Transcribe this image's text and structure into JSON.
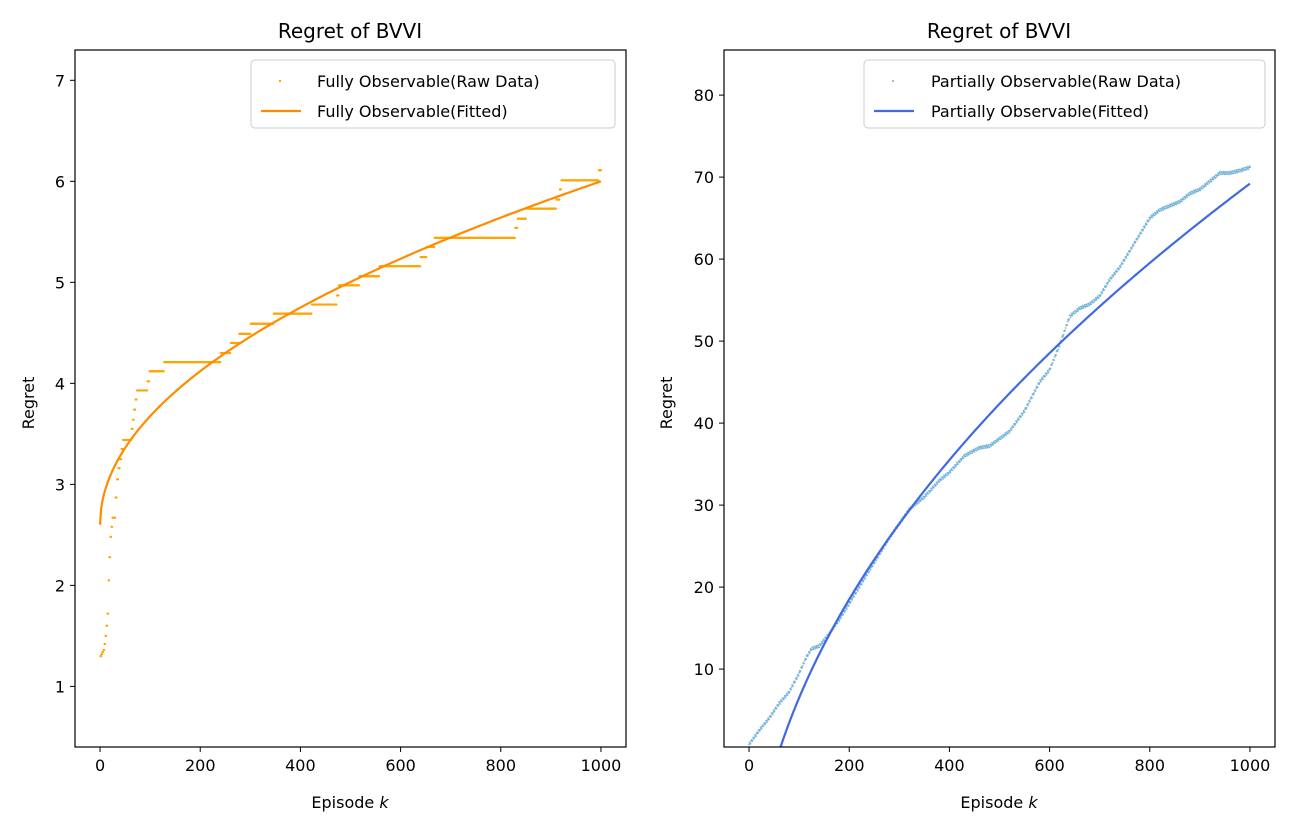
{
  "chart_data": [
    {
      "type": "scatter+line",
      "title": "Regret of BVVI",
      "xlabel_text": "Episode ",
      "xlabel_var": "k",
      "ylabel": "Regret",
      "xlim": [
        -50,
        1050
      ],
      "ylim": [
        0.4,
        7.3
      ],
      "xticks": [
        0,
        200,
        400,
        600,
        800,
        1000
      ],
      "yticks": [
        1,
        2,
        3,
        4,
        5,
        6,
        7
      ],
      "legend_position": "top-right",
      "grid": false,
      "series": [
        {
          "name": "Fully Observable(Raw Data)",
          "kind": "scatter",
          "color": "#ffa500",
          "steps": [
            [
              1,
              1.3
            ],
            [
              3,
              1.32
            ],
            [
              5,
              1.34
            ],
            [
              7,
              1.36
            ],
            [
              9,
              1.42
            ],
            [
              11,
              1.5
            ],
            [
              13,
              1.6
            ],
            [
              15,
              1.72
            ],
            [
              17,
              2.05
            ],
            [
              19,
              2.28
            ],
            [
              21,
              2.48
            ],
            [
              23,
              2.58
            ],
            [
              25,
              2.67
            ],
            [
              28,
              2.67
            ],
            [
              31,
              2.87
            ],
            [
              34,
              3.05
            ],
            [
              37,
              3.16
            ],
            [
              40,
              3.25
            ],
            [
              43,
              3.35
            ],
            [
              46,
              3.44
            ],
            [
              60,
              3.44
            ],
            [
              63,
              3.55
            ],
            [
              66,
              3.64
            ],
            [
              68,
              3.74
            ],
            [
              71,
              3.84
            ],
            [
              74,
              3.93
            ],
            [
              92,
              3.93
            ],
            [
              95,
              4.02
            ],
            [
              99,
              4.12
            ],
            [
              125,
              4.12
            ],
            [
              128,
              4.21
            ],
            [
              238,
              4.21
            ],
            [
              241,
              4.3
            ],
            [
              258,
              4.3
            ],
            [
              261,
              4.4
            ],
            [
              275,
              4.4
            ],
            [
              278,
              4.49
            ],
            [
              298,
              4.49
            ],
            [
              301,
              4.59
            ],
            [
              344,
              4.59
            ],
            [
              347,
              4.69
            ],
            [
              420,
              4.69
            ],
            [
              423,
              4.78
            ],
            [
              470,
              4.78
            ],
            [
              473,
              4.87
            ],
            [
              477,
              4.97
            ],
            [
              515,
              4.97
            ],
            [
              518,
              5.06
            ],
            [
              555,
              5.06
            ],
            [
              558,
              5.16
            ],
            [
              637,
              5.16
            ],
            [
              640,
              5.25
            ],
            [
              649,
              5.25
            ],
            [
              652,
              5.35
            ],
            [
              665,
              5.35
            ],
            [
              668,
              5.44
            ],
            [
              826,
              5.44
            ],
            [
              829,
              5.54
            ],
            [
              834,
              5.63
            ],
            [
              848,
              5.63
            ],
            [
              851,
              5.73
            ],
            [
              908,
              5.73
            ],
            [
              911,
              5.82
            ],
            [
              918,
              5.92
            ],
            [
              921,
              6.01
            ],
            [
              993,
              6.01
            ],
            [
              996,
              6.11
            ],
            [
              1000,
              6.11
            ]
          ]
        },
        {
          "name": "Fully Observable(Fitted)",
          "kind": "line",
          "color": "#ff8c00",
          "model": "a + b * sqrt(x)",
          "a": 2.6,
          "b": 0.1075,
          "x_range": [
            0,
            1000
          ]
        }
      ]
    },
    {
      "type": "scatter+line",
      "title": "Regret of BVVI",
      "xlabel_text": "Episode ",
      "xlabel_var": "k",
      "ylabel": "Regret",
      "xlim": [
        -50,
        1050
      ],
      "ylim": [
        0.5,
        85.5
      ],
      "xticks": [
        0,
        200,
        400,
        600,
        800,
        1000
      ],
      "yticks": [
        10,
        20,
        30,
        40,
        50,
        60,
        70,
        80
      ],
      "legend_position": "top-right",
      "grid": false,
      "series": [
        {
          "name": "Partially Observable(Raw Data)",
          "kind": "scatter",
          "color": "#6aaed6",
          "points": [
            [
              0,
              0.8
            ],
            [
              20,
              2.5
            ],
            [
              40,
              4.0
            ],
            [
              60,
              5.8
            ],
            [
              80,
              7.2
            ],
            [
              100,
              9.5
            ],
            [
              115,
              11.5
            ],
            [
              125,
              12.5
            ],
            [
              140,
              12.8
            ],
            [
              160,
              14.3
            ],
            [
              180,
              16.0
            ],
            [
              200,
              18.0
            ],
            [
              220,
              20.0
            ],
            [
              250,
              23.0
            ],
            [
              280,
              26.0
            ],
            [
              320,
              29.5
            ],
            [
              350,
              31.0
            ],
            [
              380,
              33.0
            ],
            [
              400,
              34.0
            ],
            [
              430,
              36.0
            ],
            [
              460,
              37.0
            ],
            [
              480,
              37.2
            ],
            [
              520,
              39.0
            ],
            [
              550,
              41.5
            ],
            [
              580,
              45.0
            ],
            [
              600,
              46.5
            ],
            [
              620,
              49.5
            ],
            [
              640,
              53.0
            ],
            [
              660,
              54.0
            ],
            [
              680,
              54.5
            ],
            [
              700,
              55.5
            ],
            [
              720,
              57.5
            ],
            [
              740,
              59.0
            ],
            [
              760,
              61.0
            ],
            [
              780,
              63.0
            ],
            [
              800,
              65.0
            ],
            [
              820,
              66.0
            ],
            [
              840,
              66.5
            ],
            [
              860,
              67.0
            ],
            [
              880,
              68.0
            ],
            [
              900,
              68.5
            ],
            [
              920,
              69.5
            ],
            [
              940,
              70.5
            ],
            [
              960,
              70.5
            ],
            [
              980,
              70.8
            ],
            [
              1000,
              71.2
            ]
          ]
        },
        {
          "name": "Partially Observable(Fitted)",
          "kind": "line",
          "color": "#4169e1",
          "model": "a + b * sqrt(x)",
          "a": -22.5,
          "b": 2.9,
          "x_range": [
            48,
            1000
          ]
        }
      ]
    }
  ]
}
